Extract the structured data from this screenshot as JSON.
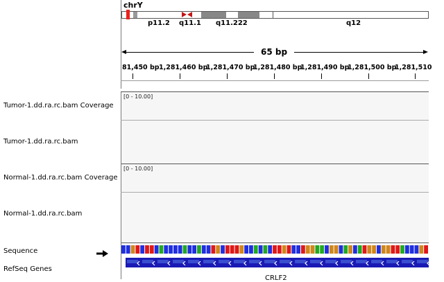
{
  "chromosome": "chrY",
  "cytobands": [
    "p11.2",
    "q11.1",
    "q11.222",
    "q12"
  ],
  "ruler": {
    "span_label": "65 bp",
    "ticks": [
      "81,450 bp",
      "1,281,460 bp",
      "1,281,470 bp",
      "1,281,480 bp",
      "1,281,490 bp",
      "1,281,500 bp",
      "1,281,510"
    ]
  },
  "tracks": [
    {
      "name": "Tumor-1.dd.ra.rc.bam Coverage",
      "range": "[0 - 10.00]"
    },
    {
      "name": "Tumor-1.dd.ra.rc.bam"
    },
    {
      "name": "Normal-1.dd.ra.rc.bam Coverage",
      "range": "[0 - 10.00]"
    },
    {
      "name": "Normal-1.dd.ra.rc.bam"
    }
  ],
  "sequence": {
    "name": "Sequence",
    "arrow": "right-arrow-icon"
  },
  "genes": {
    "name": "RefSeq Genes",
    "gene_label": "CRLF2"
  },
  "colors": {
    "A": "#22a822",
    "C": "#1f2fe0",
    "G": "#d0861c",
    "T": "#e01818",
    "gene": "#1a1ab4",
    "centromere": "#c21616",
    "current_region": "#e8231a"
  }
}
